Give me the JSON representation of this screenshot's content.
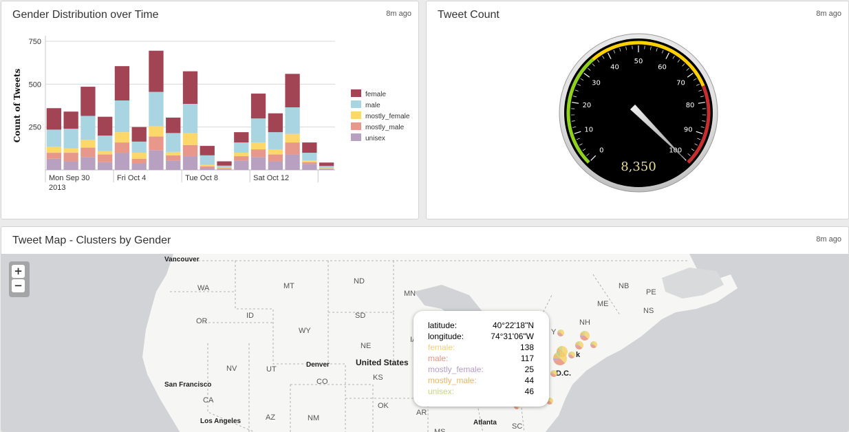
{
  "gender_panel": {
    "title": "Gender Distribution over Time",
    "updated": "8m ago"
  },
  "tweet_count_panel": {
    "title": "Tweet Count",
    "updated": "8m ago",
    "gauge": {
      "min": 0,
      "max": 100,
      "value": 100,
      "readout": "8,350",
      "ticks": [
        "0",
        "10",
        "20",
        "30",
        "40",
        "50",
        "60",
        "70",
        "80",
        "90",
        "100"
      ],
      "bands": {
        "green": "#8fd11c",
        "yellow": "#ffd100",
        "red": "#c62f2f"
      }
    }
  },
  "map_panel": {
    "title": "Tweet Map - Clusters by Gender",
    "updated": "8m ago",
    "zoom_in": "+",
    "zoom_out": "−",
    "labels": {
      "vancouver": "Vancouver",
      "wa": "WA",
      "mt": "MT",
      "nd": "ND",
      "mn": "MN",
      "or": "OR",
      "id": "ID",
      "sd": "SD",
      "wy": "WY",
      "ne": "NE",
      "ia": "IA",
      "nv": "NV",
      "ut": "UT",
      "denver": "Denver",
      "co": "CO",
      "us": "United States",
      "ks": "KS",
      "sf": "San Francisco",
      "ca": "CA",
      "la": "Los Angeles",
      "az": "AZ",
      "nm": "NM",
      "ok": "OK",
      "ar": "AR",
      "ms": "MS",
      "atlanta": "Atlanta",
      "sc": "SC",
      "nb": "NB",
      "pe": "PE",
      "me": "ME",
      "ns": "NS",
      "nh": "NH",
      "ny": "Y",
      "newyork": "k",
      "dc": "D.C."
    },
    "tooltip": {
      "latitude_label": "latitude:",
      "latitude": "40°22'18\"N",
      "longitude_label": "longitude:",
      "longitude": "74°31'06\"W",
      "rows": [
        {
          "label": "female:",
          "value": "138",
          "color": "#f5d36b"
        },
        {
          "label": "male:",
          "value": "117",
          "color": "#e8927e"
        },
        {
          "label": "mostly_female:",
          "value": "25",
          "color": "#b59bc7"
        },
        {
          "label": "mostly_male:",
          "value": "44",
          "color": "#f0b35c"
        },
        {
          "label": "unisex:",
          "value": "46",
          "color": "#c7d67a"
        }
      ]
    }
  },
  "chart_data": {
    "type": "bar",
    "stacked": true,
    "ylabel": "Count of Tweets",
    "ylim": [
      0,
      750
    ],
    "yticks": [
      "750",
      "500",
      "250"
    ],
    "xticks": [
      {
        "at": 0,
        "label": "Mon Sep 30",
        "sub": "2013"
      },
      {
        "at": 4,
        "label": "Fri Oct 4",
        "sub": ""
      },
      {
        "at": 8,
        "label": "Tue Oct 8",
        "sub": ""
      },
      {
        "at": 12,
        "label": "Sat Oct 12",
        "sub": ""
      }
    ],
    "legend_position": "right",
    "series": [
      {
        "name": "unisex",
        "color": "#b8a0c0",
        "values": [
          65,
          50,
          75,
          45,
          100,
          40,
          115,
          55,
          80,
          10,
          5,
          55,
          75,
          50,
          90,
          35,
          5
        ]
      },
      {
        "name": "mostly_male",
        "color": "#e8988a",
        "values": [
          35,
          50,
          55,
          45,
          60,
          25,
          80,
          30,
          65,
          10,
          5,
          25,
          45,
          40,
          70,
          10,
          3
        ]
      },
      {
        "name": "mostly_female",
        "color": "#fcd86a",
        "values": [
          35,
          25,
          45,
          20,
          60,
          35,
          60,
          20,
          70,
          10,
          3,
          20,
          40,
          30,
          50,
          10,
          3
        ]
      },
      {
        "name": "male",
        "color": "#a8d5e1",
        "values": [
          100,
          115,
          140,
          90,
          185,
          65,
          200,
          110,
          170,
          55,
          12,
          60,
          140,
          100,
          155,
          45,
          12
        ]
      },
      {
        "name": "female",
        "color": "#a34454",
        "values": [
          125,
          100,
          170,
          110,
          200,
          85,
          240,
          90,
          190,
          55,
          25,
          60,
          145,
          110,
          195,
          60,
          20
        ]
      }
    ],
    "legend_order": [
      "female",
      "male",
      "mostly_female",
      "mostly_male",
      "unisex"
    ]
  }
}
